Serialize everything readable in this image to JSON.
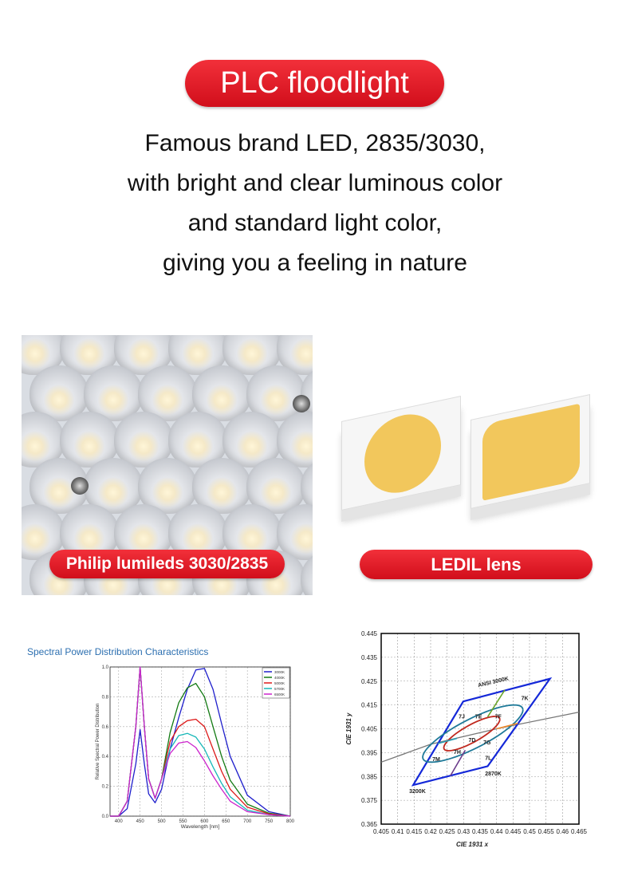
{
  "title": "PLC floodlight",
  "description": [
    "Famous brand LED, 2835/3030,",
    "with bright and clear luminous color",
    "and standard light color,",
    "giving you a feeling in nature"
  ],
  "left_label": "Philip lumileds 3030/2835",
  "right_label": "LEDIL lens",
  "colors": {
    "accent": "#e41e2b",
    "chip_phosphor": "#f2c75c"
  },
  "chart_data": [
    {
      "type": "line",
      "title": "Spectral Power Distribution Characteristics",
      "xlabel": "Wavelength [nm]",
      "ylabel": "Relative Spectral Power Distribution",
      "xlim": [
        380,
        800
      ],
      "ylim": [
        0,
        1.0
      ],
      "grid": true,
      "legend": "top-right",
      "xticks": [
        400,
        450,
        500,
        550,
        600,
        650,
        700,
        750,
        800
      ],
      "yticks": [
        "0.0",
        "0.2",
        "0.4",
        "0.6",
        "0.8",
        "1.0"
      ],
      "x": [
        380,
        400,
        420,
        440,
        450,
        460,
        470,
        485,
        500,
        520,
        540,
        560,
        580,
        600,
        620,
        640,
        660,
        700,
        750,
        800
      ],
      "series": [
        {
          "name": "3000K",
          "color": "#1f1fcc",
          "values": [
            0,
            0,
            0.05,
            0.35,
            0.58,
            0.35,
            0.15,
            0.09,
            0.18,
            0.45,
            0.66,
            0.85,
            0.98,
            0.99,
            0.85,
            0.62,
            0.4,
            0.14,
            0.03,
            0
          ]
        },
        {
          "name": "4000K",
          "color": "#137a13",
          "values": [
            0,
            0,
            0.1,
            0.6,
            1.0,
            0.6,
            0.25,
            0.12,
            0.25,
            0.56,
            0.76,
            0.86,
            0.89,
            0.8,
            0.6,
            0.4,
            0.24,
            0.08,
            0.02,
            0
          ]
        },
        {
          "name": "5000K",
          "color": "#dd1a1a",
          "values": [
            0,
            0,
            0.1,
            0.6,
            1.0,
            0.6,
            0.25,
            0.12,
            0.25,
            0.5,
            0.6,
            0.64,
            0.65,
            0.6,
            0.45,
            0.3,
            0.18,
            0.06,
            0.015,
            0
          ]
        },
        {
          "name": "5700K",
          "color": "#17b8b8",
          "values": [
            0,
            0,
            0.1,
            0.6,
            1.0,
            0.6,
            0.25,
            0.12,
            0.25,
            0.45,
            0.54,
            0.555,
            0.53,
            0.45,
            0.33,
            0.22,
            0.13,
            0.04,
            0.01,
            0
          ]
        },
        {
          "name": "6500K",
          "color": "#cc22cc",
          "values": [
            0,
            0,
            0.1,
            0.6,
            1.0,
            0.6,
            0.25,
            0.12,
            0.25,
            0.42,
            0.49,
            0.5,
            0.46,
            0.37,
            0.27,
            0.18,
            0.1,
            0.03,
            0.01,
            0
          ]
        }
      ]
    },
    {
      "type": "scatter",
      "xlabel": "CIE 1931 x",
      "ylabel": "CIE 1931 y",
      "xlim": [
        0.405,
        0.465
      ],
      "ylim": [
        0.365,
        0.445
      ],
      "grid": true,
      "xticks": [
        "0.405",
        "0.41",
        "0.415",
        "0.42",
        "0.425",
        "0.43",
        "0.435",
        "0.44",
        "0.445",
        "0.45",
        "0.455",
        "0.46",
        "0.465"
      ],
      "yticks": [
        "0.365",
        "0.375",
        "0.385",
        "0.395",
        "0.405",
        "0.415",
        "0.425",
        "0.435",
        "0.445"
      ],
      "quadrangle": [
        [
          0.4147,
          0.3814
        ],
        [
          0.4299,
          0.4165
        ],
        [
          0.4562,
          0.426
        ],
        [
          0.4373,
          0.3893
        ]
      ],
      "blackbody": [
        [
          0.405,
          0.391
        ],
        [
          0.42,
          0.3985
        ],
        [
          0.44,
          0.405
        ],
        [
          0.465,
          0.412
        ]
      ],
      "ellipses": [
        {
          "cx": 0.4328,
          "cy": 0.403,
          "ax": 0.0152,
          "ay": 0.012,
          "phase": 0.6,
          "color": "#1f7a99"
        },
        {
          "cx": 0.4325,
          "cy": 0.403,
          "ax": 0.0085,
          "ay": 0.0072,
          "phase": 0.6,
          "color": "#c0281e"
        }
      ],
      "segments": [
        {
          "from": [
            0.4373,
            0.41
          ],
          "to": [
            0.4425,
            0.4213
          ],
          "color": "#6aa52a"
        },
        {
          "from": [
            0.44,
            0.405
          ],
          "to": [
            0.4465,
            0.4073
          ],
          "color": "#f08a2a"
        },
        {
          "from": [
            0.4222,
            0.3988
          ],
          "to": [
            0.428,
            0.401
          ],
          "color": "#2a9bb0"
        },
        {
          "from": [
            0.4305,
            0.396
          ],
          "to": [
            0.426,
            0.3853
          ],
          "color": "#6a3a8a"
        }
      ],
      "labels": [
        {
          "text": "ANSI 3000K",
          "at": [
            0.4345,
            0.4225
          ]
        },
        {
          "text": "7K",
          "at": [
            0.4475,
            0.417
          ]
        },
        {
          "text": "7J",
          "at": [
            0.4285,
            0.4093
          ]
        },
        {
          "text": "7E",
          "at": [
            0.4335,
            0.4093
          ]
        },
        {
          "text": "7F",
          "at": [
            0.4395,
            0.4093
          ]
        },
        {
          "text": "7D",
          "at": [
            0.4315,
            0.3995
          ]
        },
        {
          "text": "7G",
          "at": [
            0.436,
            0.3985
          ]
        },
        {
          "text": "7H",
          "at": [
            0.427,
            0.3945
          ]
        },
        {
          "text": "7L",
          "at": [
            0.4365,
            0.392
          ]
        },
        {
          "text": "7M",
          "at": [
            0.4205,
            0.3915
          ]
        },
        {
          "text": "2870K",
          "at": [
            0.4365,
            0.3855
          ]
        },
        {
          "text": "3200K",
          "at": [
            0.4135,
            0.378
          ]
        }
      ]
    }
  ]
}
